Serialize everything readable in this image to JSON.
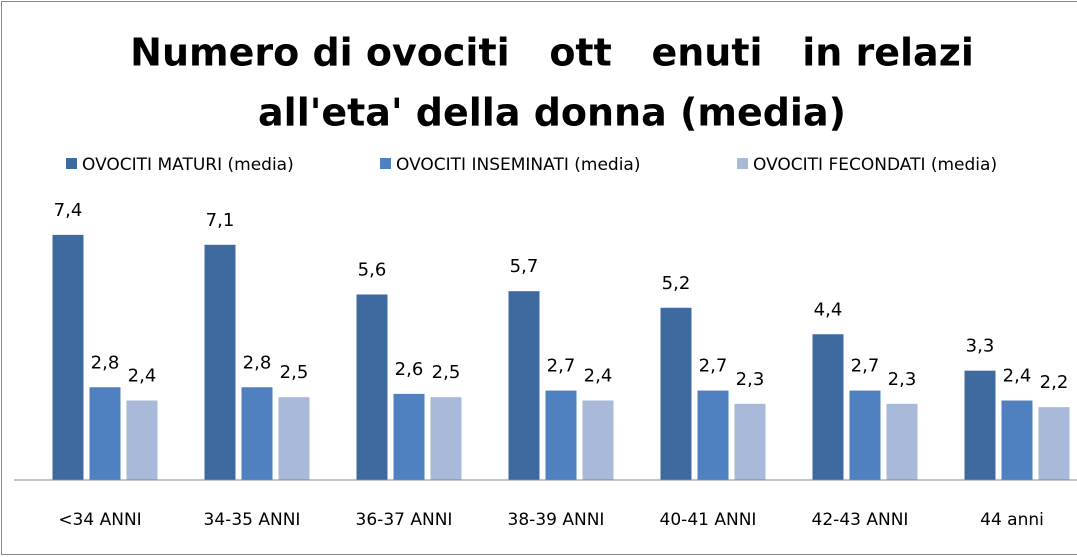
{
  "chart_data": {
    "type": "bar",
    "title": [
      "Numero di ovociti   ott   enuti   in relazi",
      "all'eta' della donna (media)"
    ],
    "categories": [
      "<34 ANNI",
      "34-35 ANNI",
      "36-37 ANNI",
      "38-39 ANNI",
      "40-41 ANNI",
      "42-43 ANNI",
      "44 anni"
    ],
    "series": [
      {
        "name": "OVOCITI MATURI (media)",
        "color": "#3e6aa0",
        "values": [
          7.4,
          7.1,
          5.6,
          5.7,
          5.2,
          4.4,
          3.3
        ],
        "value_labels": [
          "7,4",
          "7,1",
          "5,6",
          "5,7",
          "5,2",
          "4,4",
          "3,3"
        ]
      },
      {
        "name": "OVOCITI INSEMINATI (media)",
        "color": "#4f81c0",
        "values": [
          2.8,
          2.8,
          2.6,
          2.7,
          2.7,
          2.7,
          2.4
        ],
        "value_labels": [
          "2,8",
          "2,8",
          "2,6",
          "2,7",
          "2,7",
          "2,7",
          "2,4"
        ]
      },
      {
        "name": "OVOCITI FECONDATI (media)",
        "color": "#a9b9d9",
        "values": [
          2.4,
          2.5,
          2.5,
          2.4,
          2.3,
          2.3,
          2.2
        ],
        "value_labels": [
          "2,4",
          "2,5",
          "2,5",
          "2,4",
          "2,3",
          "2,3",
          "2,2"
        ]
      }
    ],
    "ylim": [
      0,
      8
    ],
    "legend": "top"
  }
}
